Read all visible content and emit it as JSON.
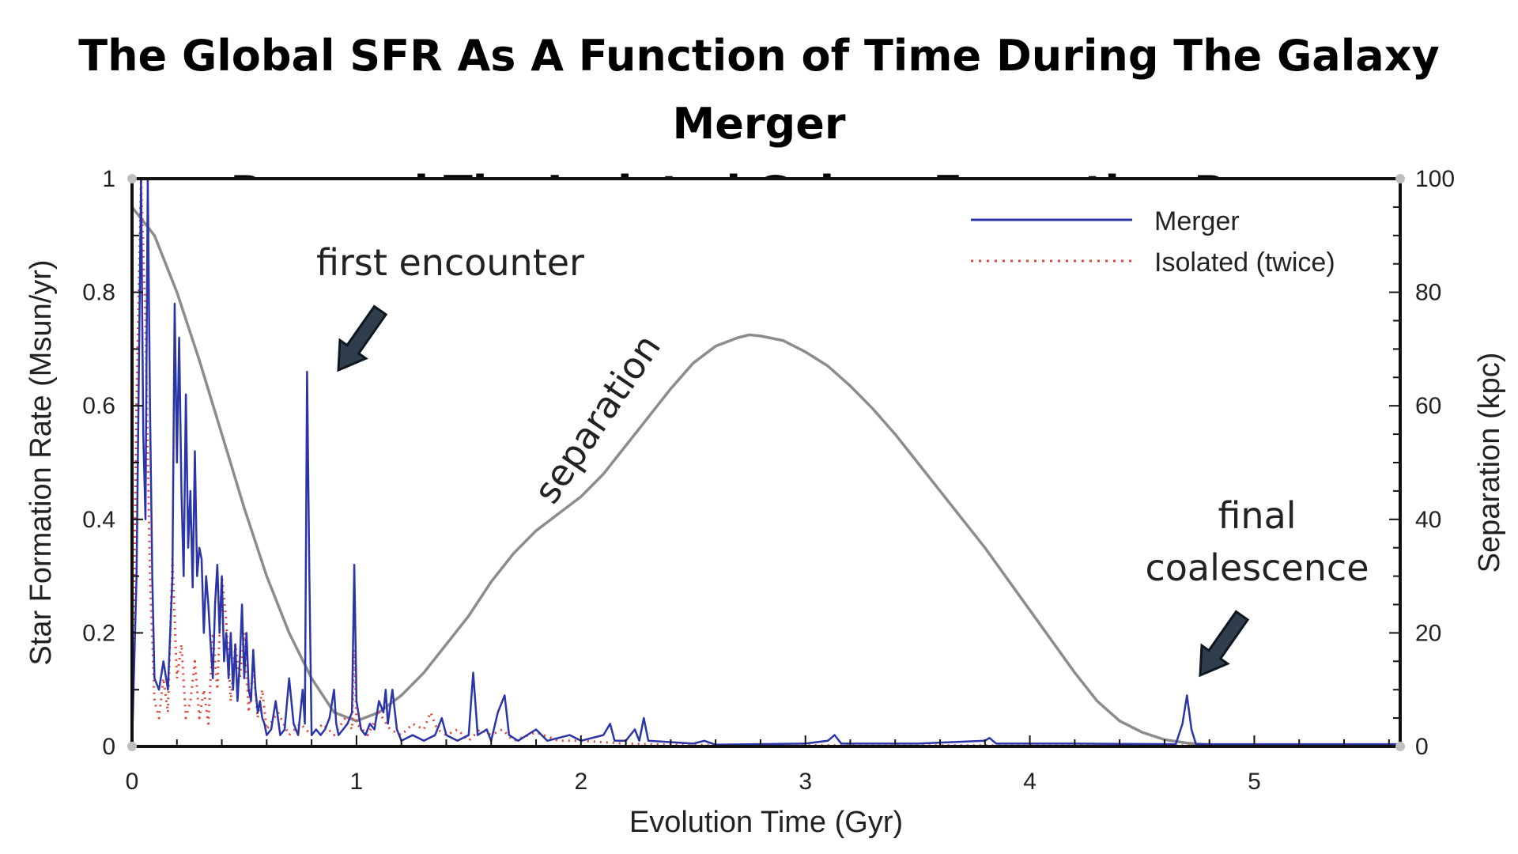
{
  "title": {
    "line1": "The Global SFR As A Function of Time During The Galaxy Merger",
    "line2": "Run and The Isolated Galaxy Formation Run"
  },
  "chart_data": {
    "type": "line",
    "xlabel": "Evolution Time (Gyr)",
    "ylabel": "Star Formation Rate (Msun/yr)",
    "y2label": "Separation (kpc)",
    "xlim": [
      0,
      5.65
    ],
    "ylim": [
      0,
      1
    ],
    "y2lim": [
      0,
      100
    ],
    "x_ticks": [
      "0",
      "1",
      "2",
      "3",
      "4",
      "5"
    ],
    "y_ticks": [
      "0",
      "0.2",
      "0.4",
      "0.6",
      "0.8",
      "1"
    ],
    "y2_ticks": [
      "0",
      "20",
      "40",
      "60",
      "80",
      "100"
    ],
    "grid": false,
    "legend_position": "top-right",
    "colors": {
      "merger": "#2b35a8",
      "isolated": "#e0463c",
      "separation": "#8c8c8c"
    },
    "series": [
      {
        "name": "Merger",
        "axis": "left",
        "style": "solid",
        "points": [
          [
            0.0,
            0.0
          ],
          [
            0.02,
            0.3
          ],
          [
            0.04,
            1.0
          ],
          [
            0.05,
            0.55
          ],
          [
            0.06,
            0.4
          ],
          [
            0.07,
            1.0
          ],
          [
            0.08,
            0.6
          ],
          [
            0.09,
            0.3
          ],
          [
            0.1,
            0.12
          ],
          [
            0.12,
            0.1
          ],
          [
            0.14,
            0.15
          ],
          [
            0.16,
            0.1
          ],
          [
            0.18,
            0.3
          ],
          [
            0.19,
            0.78
          ],
          [
            0.2,
            0.5
          ],
          [
            0.21,
            0.72
          ],
          [
            0.22,
            0.45
          ],
          [
            0.23,
            0.3
          ],
          [
            0.24,
            0.62
          ],
          [
            0.25,
            0.35
          ],
          [
            0.26,
            0.45
          ],
          [
            0.27,
            0.28
          ],
          [
            0.28,
            0.52
          ],
          [
            0.29,
            0.3
          ],
          [
            0.3,
            0.35
          ],
          [
            0.31,
            0.33
          ],
          [
            0.32,
            0.2
          ],
          [
            0.33,
            0.3
          ],
          [
            0.34,
            0.25
          ],
          [
            0.35,
            0.18
          ],
          [
            0.36,
            0.12
          ],
          [
            0.37,
            0.25
          ],
          [
            0.38,
            0.32
          ],
          [
            0.39,
            0.2
          ],
          [
            0.4,
            0.3
          ],
          [
            0.41,
            0.15
          ],
          [
            0.42,
            0.2
          ],
          [
            0.43,
            0.12
          ],
          [
            0.44,
            0.2
          ],
          [
            0.45,
            0.1
          ],
          [
            0.46,
            0.18
          ],
          [
            0.47,
            0.08
          ],
          [
            0.48,
            0.15
          ],
          [
            0.49,
            0.25
          ],
          [
            0.5,
            0.12
          ],
          [
            0.51,
            0.2
          ],
          [
            0.52,
            0.1
          ],
          [
            0.53,
            0.08
          ],
          [
            0.54,
            0.17
          ],
          [
            0.55,
            0.1
          ],
          [
            0.56,
            0.06
          ],
          [
            0.57,
            0.08
          ],
          [
            0.58,
            0.05
          ],
          [
            0.59,
            0.04
          ],
          [
            0.6,
            0.02
          ],
          [
            0.62,
            0.03
          ],
          [
            0.64,
            0.08
          ],
          [
            0.66,
            0.02
          ],
          [
            0.68,
            0.03
          ],
          [
            0.7,
            0.12
          ],
          [
            0.72,
            0.04
          ],
          [
            0.74,
            0.02
          ],
          [
            0.76,
            0.1
          ],
          [
            0.77,
            0.04
          ],
          [
            0.78,
            0.66
          ],
          [
            0.79,
            0.3
          ],
          [
            0.8,
            0.02
          ],
          [
            0.82,
            0.03
          ],
          [
            0.84,
            0.02
          ],
          [
            0.86,
            0.03
          ],
          [
            0.88,
            0.05
          ],
          [
            0.9,
            0.1
          ],
          [
            0.91,
            0.04
          ],
          [
            0.92,
            0.02
          ],
          [
            0.94,
            0.03
          ],
          [
            0.96,
            0.04
          ],
          [
            0.98,
            0.06
          ],
          [
            0.99,
            0.32
          ],
          [
            1.0,
            0.08
          ],
          [
            1.02,
            0.03
          ],
          [
            1.04,
            0.02
          ],
          [
            1.06,
            0.04
          ],
          [
            1.08,
            0.03
          ],
          [
            1.1,
            0.08
          ],
          [
            1.12,
            0.06
          ],
          [
            1.13,
            0.1
          ],
          [
            1.14,
            0.04
          ],
          [
            1.16,
            0.1
          ],
          [
            1.18,
            0.03
          ],
          [
            1.2,
            0.01
          ],
          [
            1.25,
            0.02
          ],
          [
            1.3,
            0.01
          ],
          [
            1.35,
            0.02
          ],
          [
            1.38,
            0.05
          ],
          [
            1.4,
            0.02
          ],
          [
            1.45,
            0.01
          ],
          [
            1.5,
            0.02
          ],
          [
            1.52,
            0.13
          ],
          [
            1.54,
            0.02
          ],
          [
            1.58,
            0.03
          ],
          [
            1.6,
            0.01
          ],
          [
            1.63,
            0.06
          ],
          [
            1.66,
            0.09
          ],
          [
            1.68,
            0.02
          ],
          [
            1.72,
            0.01
          ],
          [
            1.8,
            0.03
          ],
          [
            1.85,
            0.01
          ],
          [
            1.95,
            0.02
          ],
          [
            2.0,
            0.01
          ],
          [
            2.1,
            0.02
          ],
          [
            2.13,
            0.04
          ],
          [
            2.15,
            0.01
          ],
          [
            2.2,
            0.01
          ],
          [
            2.24,
            0.03
          ],
          [
            2.26,
            0.01
          ],
          [
            2.28,
            0.05
          ],
          [
            2.3,
            0.01
          ],
          [
            2.5,
            0.005
          ],
          [
            2.55,
            0.01
          ],
          [
            2.6,
            0.003
          ],
          [
            3.0,
            0.005
          ],
          [
            3.1,
            0.01
          ],
          [
            3.13,
            0.02
          ],
          [
            3.16,
            0.005
          ],
          [
            3.5,
            0.005
          ],
          [
            3.8,
            0.01
          ],
          [
            3.82,
            0.015
          ],
          [
            3.85,
            0.005
          ],
          [
            4.2,
            0.005
          ],
          [
            4.65,
            0.004
          ],
          [
            4.68,
            0.04
          ],
          [
            4.7,
            0.09
          ],
          [
            4.72,
            0.03
          ],
          [
            4.74,
            0.004
          ],
          [
            5.65,
            0.004
          ]
        ]
      },
      {
        "name": "Isolated (twice)",
        "axis": "left",
        "style": "dotted",
        "points": [
          [
            0.0,
            0.0
          ],
          [
            0.02,
            0.6
          ],
          [
            0.04,
            1.0
          ],
          [
            0.06,
            0.75
          ],
          [
            0.08,
            0.3
          ],
          [
            0.1,
            0.08
          ],
          [
            0.12,
            0.05
          ],
          [
            0.14,
            0.12
          ],
          [
            0.16,
            0.06
          ],
          [
            0.18,
            0.33
          ],
          [
            0.2,
            0.12
          ],
          [
            0.22,
            0.18
          ],
          [
            0.24,
            0.05
          ],
          [
            0.26,
            0.08
          ],
          [
            0.28,
            0.15
          ],
          [
            0.3,
            0.05
          ],
          [
            0.32,
            0.1
          ],
          [
            0.34,
            0.04
          ],
          [
            0.36,
            0.2
          ],
          [
            0.38,
            0.1
          ],
          [
            0.4,
            0.3
          ],
          [
            0.42,
            0.22
          ],
          [
            0.44,
            0.08
          ],
          [
            0.46,
            0.18
          ],
          [
            0.48,
            0.12
          ],
          [
            0.5,
            0.2
          ],
          [
            0.52,
            0.06
          ],
          [
            0.54,
            0.14
          ],
          [
            0.56,
            0.05
          ],
          [
            0.58,
            0.1
          ],
          [
            0.6,
            0.03
          ],
          [
            0.65,
            0.06
          ],
          [
            0.7,
            0.02
          ],
          [
            0.75,
            0.04
          ],
          [
            0.8,
            0.02
          ],
          [
            0.85,
            0.04
          ],
          [
            0.9,
            0.02
          ],
          [
            0.95,
            0.05
          ],
          [
            0.98,
            0.03
          ],
          [
            0.99,
            0.17
          ],
          [
            1.0,
            0.04
          ],
          [
            1.05,
            0.02
          ],
          [
            1.1,
            0.06
          ],
          [
            1.15,
            0.03
          ],
          [
            1.2,
            0.02
          ],
          [
            1.25,
            0.04
          ],
          [
            1.3,
            0.03
          ],
          [
            1.33,
            0.06
          ],
          [
            1.36,
            0.03
          ],
          [
            1.4,
            0.02
          ],
          [
            1.45,
            0.03
          ],
          [
            1.5,
            0.01
          ],
          [
            1.55,
            0.03
          ],
          [
            1.6,
            0.02
          ],
          [
            1.65,
            0.03
          ],
          [
            1.7,
            0.01
          ],
          [
            1.8,
            0.025
          ],
          [
            1.9,
            0.01
          ],
          [
            2.0,
            0.01
          ],
          [
            2.2,
            0.005
          ],
          [
            2.4,
            0.003
          ],
          [
            3.0,
            0.002
          ],
          [
            4.0,
            0.002
          ],
          [
            5.65,
            0.002
          ]
        ]
      },
      {
        "name": "separation",
        "axis": "right",
        "style": "solid",
        "points": [
          [
            0.0,
            95
          ],
          [
            0.1,
            90
          ],
          [
            0.2,
            80
          ],
          [
            0.3,
            68
          ],
          [
            0.4,
            55
          ],
          [
            0.5,
            42
          ],
          [
            0.6,
            30
          ],
          [
            0.7,
            20
          ],
          [
            0.8,
            12
          ],
          [
            0.9,
            6
          ],
          [
            1.0,
            4.5
          ],
          [
            1.1,
            6
          ],
          [
            1.2,
            9
          ],
          [
            1.3,
            13
          ],
          [
            1.4,
            18
          ],
          [
            1.5,
            23
          ],
          [
            1.6,
            29
          ],
          [
            1.7,
            34
          ],
          [
            1.8,
            38
          ],
          [
            1.9,
            41
          ],
          [
            2.0,
            44
          ],
          [
            2.1,
            48
          ],
          [
            2.2,
            53
          ],
          [
            2.3,
            58
          ],
          [
            2.4,
            63
          ],
          [
            2.5,
            67.5
          ],
          [
            2.6,
            70.5
          ],
          [
            2.7,
            72
          ],
          [
            2.75,
            72.5
          ],
          [
            2.8,
            72.3
          ],
          [
            2.9,
            71.5
          ],
          [
            3.0,
            69.5
          ],
          [
            3.1,
            67
          ],
          [
            3.2,
            63.5
          ],
          [
            3.3,
            59.5
          ],
          [
            3.4,
            55
          ],
          [
            3.5,
            50
          ],
          [
            3.6,
            45
          ],
          [
            3.7,
            40
          ],
          [
            3.8,
            35
          ],
          [
            3.9,
            29.5
          ],
          [
            4.0,
            24
          ],
          [
            4.1,
            18.5
          ],
          [
            4.2,
            13
          ],
          [
            4.3,
            8
          ],
          [
            4.4,
            4.5
          ],
          [
            4.5,
            2.5
          ],
          [
            4.6,
            1.2
          ],
          [
            4.7,
            0.6
          ],
          [
            4.8,
            0.3
          ],
          [
            5.0,
            0.1
          ],
          [
            5.65,
            0.0
          ]
        ]
      }
    ],
    "legend": [
      {
        "label": "Merger",
        "style": "solid"
      },
      {
        "label": "Isolated (twice)",
        "style": "dotted"
      }
    ],
    "annotations": [
      {
        "text": "first encounter",
        "points_to": [
          0.95,
          0.66
        ]
      },
      {
        "text": "separation",
        "along": "separation"
      },
      {
        "text": "final",
        "points_to": [
          4.7,
          0.13
        ]
      },
      {
        "text": "coalescence"
      }
    ]
  }
}
